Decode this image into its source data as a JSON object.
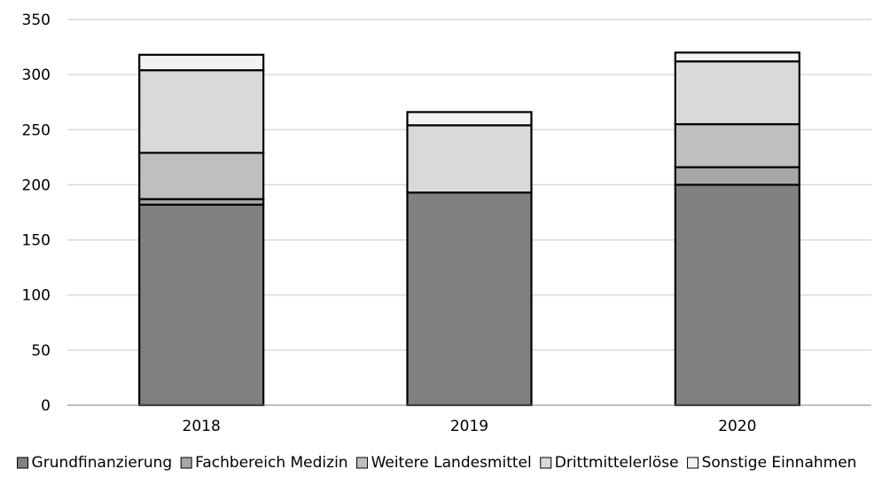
{
  "chart_data": {
    "type": "bar",
    "stacked": true,
    "categories": [
      "2018",
      "2019",
      "2020"
    ],
    "series": [
      {
        "name": "Grundfinanzierung",
        "color": "#808080",
        "values": [
          182,
          193,
          200
        ]
      },
      {
        "name": "Fachbereich Medizin",
        "color": "#a6a6a6",
        "values": [
          5,
          0,
          16
        ]
      },
      {
        "name": "Weitere Landesmittel",
        "color": "#bfbfbf",
        "values": [
          42,
          0,
          39
        ]
      },
      {
        "name": "Drittmittelerlöse",
        "color": "#d9d9d9",
        "values": [
          75,
          61,
          57
        ]
      },
      {
        "name": "Sonstige Einnahmen",
        "color": "#f2f2f2",
        "values": [
          14,
          12,
          8
        ]
      }
    ],
    "ylim": [
      0,
      350
    ],
    "yticks": [
      "0",
      "50",
      "100",
      "150",
      "200",
      "250",
      "300",
      "350"
    ],
    "grid": true,
    "legend_position": "bottom"
  }
}
